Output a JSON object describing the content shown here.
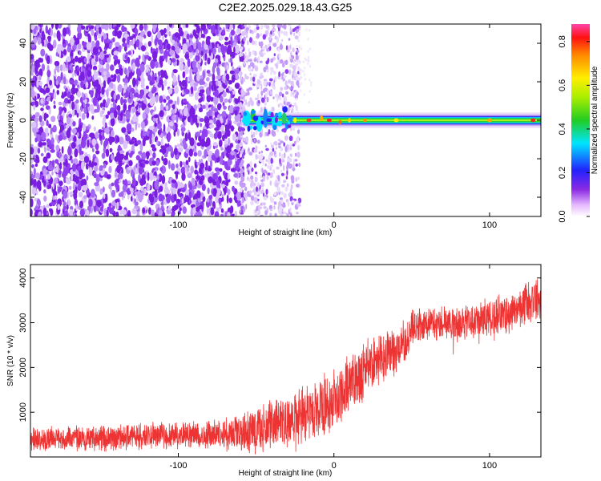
{
  "title": "C2E2.2025.029.18.43.G25",
  "colors": {
    "background": "#ffffff",
    "snr_line": "#ee3333",
    "spectrogram_low": "#7a1fe0",
    "spectrogram_line_core": "#ff2a2a"
  },
  "chart_data": [
    {
      "type": "heatmap",
      "xlabel": "Height of straight line (km)",
      "ylabel": "Frequency (Hz)",
      "xlim": [
        -195,
        133
      ],
      "ylim": [
        -50,
        50
      ],
      "xticks": [
        -100,
        0,
        100
      ],
      "xtick_labels": [
        "-100",
        "0",
        "100"
      ],
      "yticks": [
        -40,
        -20,
        0,
        20,
        40
      ],
      "ytick_labels": [
        "-40",
        "-20",
        "0",
        "20",
        "40"
      ],
      "grid": false,
      "colorbar": {
        "label": "Normalized spectral amplitude",
        "range": [
          0,
          0.88
        ],
        "ticks": [
          0.0,
          0.2,
          0.4,
          0.6,
          0.8
        ],
        "tick_labels": [
          "0.0",
          "0.2",
          "0.4",
          "0.6",
          "0.8"
        ],
        "colormap": "rainbow (white-violet-blue-cyan-green-yellow-red-magenta)"
      },
      "regions": [
        {
          "x_range": [
            -195,
            -60
          ],
          "content": "broadband noise",
          "amplitude": "0.05-0.2"
        },
        {
          "x_range": [
            -60,
            -25
          ],
          "content": "sparse noise",
          "amplitude": "0.02-0.1"
        },
        {
          "x_range": [
            -60,
            133
          ],
          "content": "carrier line at 0 Hz",
          "amplitude": "up to 0.85"
        }
      ]
    },
    {
      "type": "line",
      "xlabel": "Height of straight line (km)",
      "ylabel": "SNR (10 * v/v)",
      "xlim": [
        -195,
        133
      ],
      "ylim": [
        0,
        4300
      ],
      "xticks": [
        -100,
        0,
        100
      ],
      "xtick_labels": [
        "-100",
        "0",
        "100"
      ],
      "yticks": [
        1000,
        2000,
        3000,
        4000
      ],
      "ytick_labels": [
        "1000",
        "2000",
        "3000",
        "4000"
      ],
      "grid": false,
      "series": [
        {
          "color": "#ee3333",
          "x": [
            -195,
            -180,
            -160,
            -140,
            -120,
            -100,
            -80,
            -60,
            -50,
            -40,
            -30,
            -20,
            -10,
            0,
            10,
            20,
            30,
            40,
            48,
            50,
            60,
            70,
            80,
            90,
            100,
            110,
            120,
            130,
            133
          ],
          "y": [
            400,
            400,
            420,
            440,
            460,
            480,
            500,
            560,
            620,
            700,
            800,
            900,
            1050,
            1250,
            1600,
            1950,
            2200,
            2400,
            2600,
            2900,
            3000,
            3000,
            2950,
            3050,
            3100,
            3200,
            3350,
            3500,
            3550
          ],
          "spread": [
            280,
            280,
            280,
            300,
            300,
            300,
            320,
            400,
            550,
            600,
            600,
            650,
            700,
            750,
            700,
            650,
            600,
            550,
            500,
            450,
            400,
            400,
            400,
            420,
            450,
            450,
            500,
            500,
            500
          ]
        }
      ]
    }
  ]
}
